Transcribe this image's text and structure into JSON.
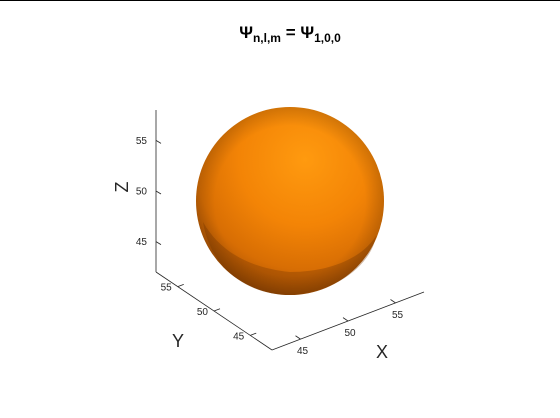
{
  "chart_data": {
    "type": "surface",
    "title": {
      "psi": "Ψ",
      "sub_left": "n,l,m",
      "eq": " = ",
      "sub_right": "1,0,0"
    },
    "xlabel": "X",
    "ylabel": "Y",
    "zlabel": "Z",
    "x_ticks": [
      45,
      50,
      55
    ],
    "y_ticks": [
      45,
      50,
      55
    ],
    "z_ticks": [
      45,
      50,
      55
    ],
    "xlim": [
      42,
      58
    ],
    "ylim": [
      42,
      58
    ],
    "zlim": [
      42,
      58
    ],
    "surface": {
      "shape": "sphere",
      "center": [
        50,
        50,
        50
      ],
      "radius": 6.3,
      "color": "#ff8c00"
    },
    "grid": false
  }
}
